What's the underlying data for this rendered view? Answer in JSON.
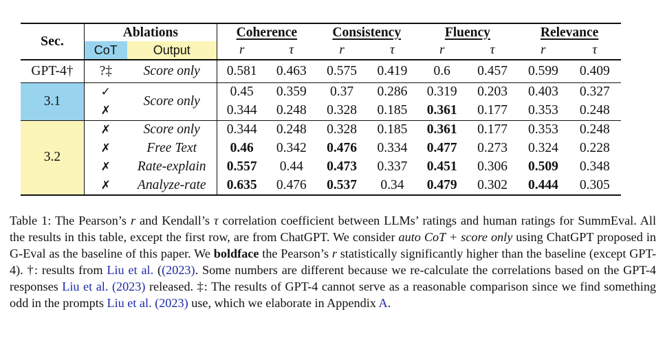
{
  "table": {
    "header": {
      "sec": "Sec.",
      "ablations": "Ablations",
      "cot": "CoT",
      "output": "Output",
      "metrics": [
        "Coherence",
        "Consistency",
        "Fluency",
        "Relevance"
      ],
      "r_symbol": "r",
      "tau_symbol": "τ"
    },
    "rows": [
      {
        "sec": "GPT-4†",
        "cot": "?‡",
        "output": "Score only",
        "values": [
          "0.581",
          "0.463",
          "0.575",
          "0.419",
          "0.6",
          "0.457",
          "0.599",
          "0.409"
        ],
        "bold": [
          false,
          false,
          false,
          false,
          false,
          false,
          false,
          false
        ]
      },
      {
        "sec": "3.1",
        "cot": "✓",
        "output": "Score only",
        "values": [
          "0.45",
          "0.359",
          "0.37",
          "0.286",
          "0.319",
          "0.203",
          "0.403",
          "0.327"
        ],
        "bold": [
          false,
          false,
          false,
          false,
          false,
          false,
          false,
          false
        ]
      },
      {
        "sec": "",
        "cot": "✗",
        "output": "",
        "values": [
          "0.344",
          "0.248",
          "0.328",
          "0.185",
          "0.361",
          "0.177",
          "0.353",
          "0.248"
        ],
        "bold": [
          false,
          false,
          false,
          false,
          true,
          false,
          false,
          false
        ]
      },
      {
        "sec": "3.2",
        "cot": "✗",
        "output": "Score only",
        "values": [
          "0.344",
          "0.248",
          "0.328",
          "0.185",
          "0.361",
          "0.177",
          "0.353",
          "0.248"
        ],
        "bold": [
          false,
          false,
          false,
          false,
          true,
          false,
          false,
          false
        ]
      },
      {
        "sec": "",
        "cot": "✗",
        "output": "Free Text",
        "values": [
          "0.46",
          "0.342",
          "0.476",
          "0.334",
          "0.477",
          "0.273",
          "0.324",
          "0.228"
        ],
        "bold": [
          true,
          false,
          true,
          false,
          true,
          false,
          false,
          false
        ]
      },
      {
        "sec": "",
        "cot": "✗",
        "output": "Rate-explain",
        "values": [
          "0.557",
          "0.44",
          "0.473",
          "0.337",
          "0.451",
          "0.306",
          "0.509",
          "0.348"
        ],
        "bold": [
          true,
          false,
          true,
          false,
          true,
          false,
          true,
          false
        ]
      },
      {
        "sec": "",
        "cot": "✗",
        "output": "Analyze-rate",
        "values": [
          "0.635",
          "0.476",
          "0.537",
          "0.34",
          "0.479",
          "0.302",
          "0.444",
          "0.305"
        ],
        "bold": [
          true,
          false,
          true,
          false,
          true,
          false,
          true,
          false
        ]
      }
    ]
  },
  "caption": {
    "p1": "Table 1: The Pearson’s ",
    "r1": "r",
    "p2": " and Kendall’s ",
    "tau": "τ",
    "p3": " correlation coefficient between LLMs’ ratings and human ratings for SummEval. All the results in this table, except the first row, are from ChatGPT. We consider ",
    "auto_cot": "auto CoT + score only",
    "p4": " using ChatGPT proposed in G-Eval as the baseline of this paper. We ",
    "boldface": "boldface",
    "p5": " the Pearson’s ",
    "r2": "r",
    "p6": " statistically significantly higher than the baseline (except GPT-4). †: results from ",
    "cite1": "Liu et al.",
    "year1": "(2023)",
    "p7": ". Some numbers are different because we re-calculate the correlations based on the GPT-4 responses ",
    "cite2": "Liu et al.",
    "year2": "(2023)",
    "p8": " released. ‡: The results of GPT-4 cannot serve as a reasonable comparison since we find something odd in the prompts ",
    "cite3": "Liu et al.",
    "year3": "(2023)",
    "p9": " use, which we elaborate in Appendix ",
    "appendix": "A",
    "p10": "."
  }
}
